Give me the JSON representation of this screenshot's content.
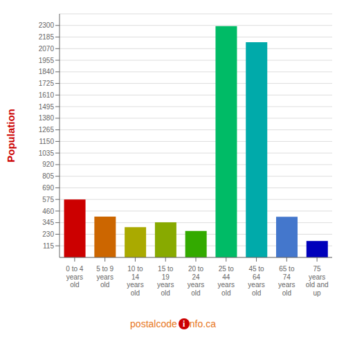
{
  "chart_data": {
    "type": "bar",
    "y_label": "Population",
    "categories": [
      "0 to 4\nyears\nold",
      "5 to 9\nyears\nold",
      "10 to\n14\nyears\nold",
      "15 to\n19\nyears\nold",
      "20 to\n24\nyears\nold",
      "25 to\n44\nyears\nold",
      "45 to\n64\nyears\nold",
      "65 to\n74\nyears\nold",
      "75\nyears\nold and\nup"
    ],
    "values": [
      575,
      405,
      300,
      348,
      263,
      2293,
      2133,
      403,
      163
    ],
    "colors": [
      "#cc0000",
      "#cc6600",
      "#aaaa00",
      "#88aa00",
      "#33aa00",
      "#00bb66",
      "#00aaaa",
      "#4477cc",
      "#0000bb"
    ],
    "ylim": [
      0,
      2415
    ],
    "yticks": [
      115,
      230,
      345,
      460,
      575,
      690,
      805,
      920,
      1035,
      1150,
      1265,
      1380,
      1495,
      1610,
      1725,
      1840,
      1955,
      2070,
      2185,
      2300
    ],
    "grid": true,
    "annotations": [
      "postalcode",
      "i",
      "nfo.ca"
    ]
  }
}
